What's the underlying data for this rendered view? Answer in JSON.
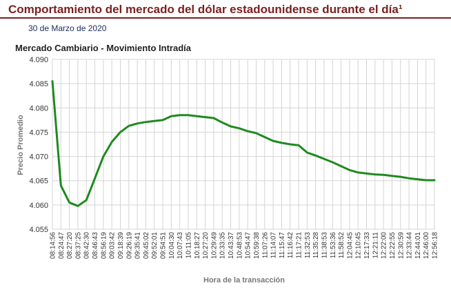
{
  "header": {
    "title": "Comportamiento del mercado del dólar estadounidense durante el día¹",
    "date": "30 de Marzo de 2020"
  },
  "colors": {
    "title": "#7a1f1f",
    "line": "#1e8a1e",
    "grid": "#d4d4d4",
    "frame": "#b8b8b8"
  },
  "chart_data": {
    "type": "line",
    "title": "Mercado Cambiario - Movimiento Intradía",
    "xlabel": "Hora de la transacción",
    "ylabel": "Precio Promedio",
    "ylim": [
      4.055,
      4.09
    ],
    "y_ticks": [
      "4.090",
      "4.085",
      "4.080",
      "4.075",
      "4.070",
      "4.065",
      "4.060",
      "4.055"
    ],
    "grid": true,
    "categories": [
      "08:14:56",
      "08:24:47",
      "08:27:20",
      "08:37:25",
      "08:42:30",
      "08:46:43",
      "08:56:19",
      "09:03:42",
      "09:18:39",
      "09:26:19",
      "09:35:41",
      "09:45:02",
      "09:52:01",
      "09:54:51",
      "10:04:30",
      "10:07:43",
      "10:11:05",
      "10:18:27",
      "10:27:20",
      "10:29:49",
      "10:33:35",
      "10:43:37",
      "10:48:53",
      "10:54:47",
      "10:59:38",
      "11:07:26",
      "11:14:07",
      "11:15:47",
      "11:16:42",
      "11:17:21",
      "11:32:53",
      "11:35:28",
      "11:38:53",
      "11:53:36",
      "11:58:52",
      "12:04:45",
      "12:10:45",
      "12:17:33",
      "12:21:11",
      "12:22:00",
      "12:22:55",
      "12:30:59",
      "12:33:44",
      "12:44:01",
      "12:46:00",
      "12:56:18"
    ],
    "series": [
      {
        "values": [
          4.0855,
          4.064,
          4.0605,
          4.0598,
          4.061,
          4.0655,
          4.07,
          4.073,
          4.075,
          4.0763,
          4.0768,
          4.0771,
          4.0773,
          4.0775,
          4.0783,
          4.0785,
          4.0785,
          4.0783,
          4.0781,
          4.0779,
          4.077,
          4.0762,
          4.0758,
          4.0752,
          4.0748,
          4.074,
          4.0732,
          4.0728,
          4.0725,
          4.0723,
          4.0708,
          4.0702,
          4.0695,
          4.0688,
          4.068,
          4.0672,
          4.0667,
          4.0665,
          4.0663,
          4.0662,
          4.066,
          4.0658,
          4.0655,
          4.0653,
          4.0651,
          4.0651
        ]
      }
    ]
  }
}
